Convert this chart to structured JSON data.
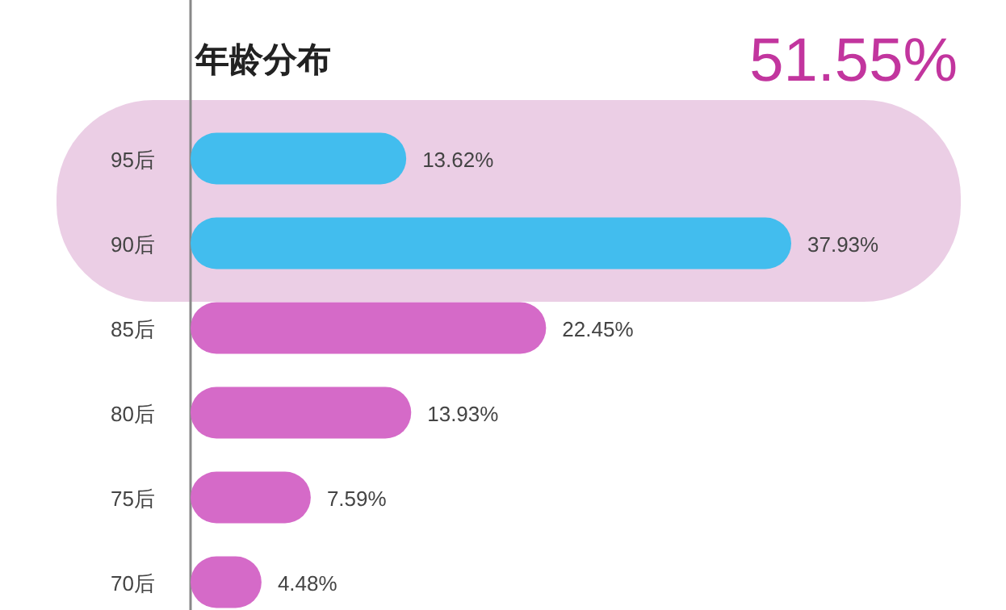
{
  "chart_data": {
    "type": "bar",
    "orientation": "horizontal",
    "title": "年龄分布",
    "categories": [
      "95后",
      "90后",
      "85后",
      "80后",
      "75后",
      "70后"
    ],
    "values": [
      13.62,
      37.93,
      22.45,
      13.93,
      7.59,
      4.48
    ],
    "value_labels": [
      "13.62%",
      "37.93%",
      "22.45%",
      "13.93%",
      "7.59%",
      "4.48%"
    ],
    "colors": [
      "#42bdee",
      "#42bdee",
      "#d56ac8",
      "#d56ac8",
      "#d56ac8",
      "#d56ac8"
    ],
    "bands": [
      {
        "axis": "y",
        "from": "95后",
        "to": "90后",
        "label": "51.55%",
        "color": "#e8c6e0"
      }
    ],
    "tick_labels": "y"
  }
}
